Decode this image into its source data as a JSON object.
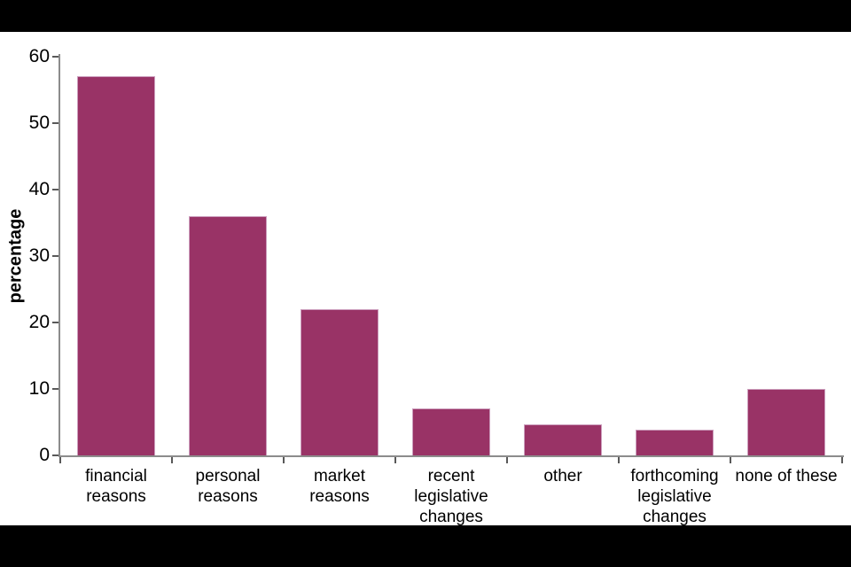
{
  "chart_data": {
    "type": "bar",
    "categories": [
      "financial reasons",
      "personal reasons",
      "market reasons",
      "recent legislative changes",
      "other",
      "forthcoming legislative changes",
      "none of these"
    ],
    "values": [
      57,
      36,
      22,
      7,
      4.7,
      3.9,
      10
    ],
    "title": "",
    "xlabel": "",
    "ylabel": "percentage",
    "ylim": [
      0,
      60
    ],
    "ytick_step": 10,
    "ytick_labels": [
      "0",
      "10",
      "20",
      "30",
      "40",
      "50",
      "60"
    ],
    "grid": false,
    "legend": false,
    "bar_color": "#993366",
    "bar_border_color": "#cc9ebd",
    "axis_color": "#8c8c8c",
    "tick_color": "#595959",
    "text_color": "#000000",
    "plot_background": "#ffffff",
    "frame_background": "#000000"
  }
}
